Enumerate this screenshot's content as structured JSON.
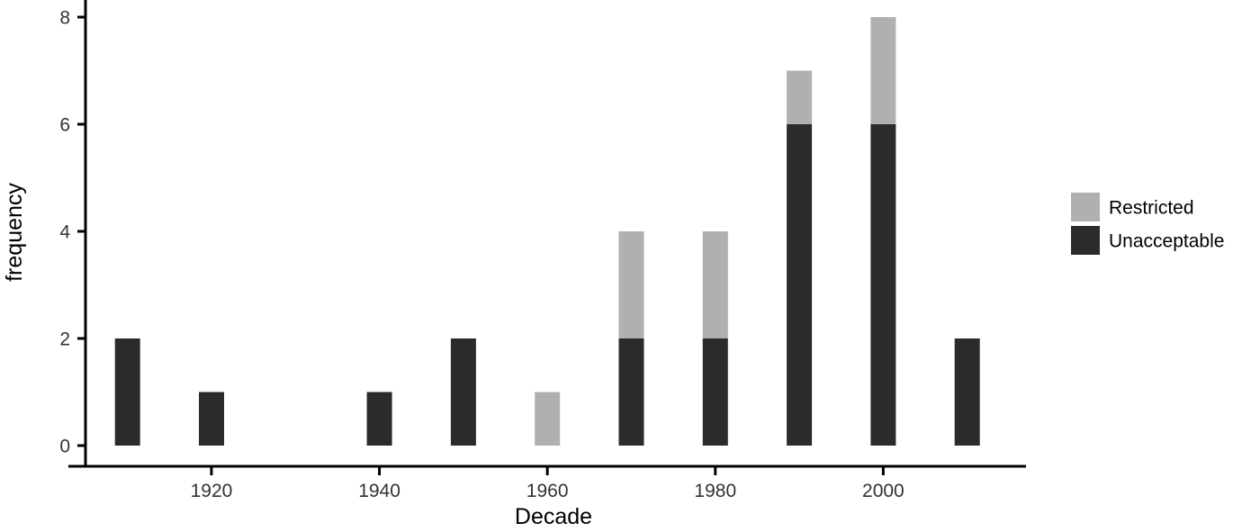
{
  "chart_data": {
    "type": "bar",
    "stacked": true,
    "title": "",
    "xlabel": "Decade",
    "ylabel": "frequency",
    "categories": [
      1910,
      1920,
      1930,
      1940,
      1950,
      1960,
      1970,
      1980,
      1990,
      2000,
      2010
    ],
    "series": [
      {
        "name": "Unacceptable",
        "color": "#2b2b2b",
        "values": [
          2,
          1,
          0,
          1,
          2,
          0,
          2,
          2,
          6,
          6,
          2
        ]
      },
      {
        "name": "Restricted",
        "color": "#b0b0b0",
        "values": [
          0,
          0,
          0,
          0,
          0,
          1,
          2,
          2,
          1,
          2,
          0
        ]
      }
    ],
    "totals": [
      2,
      1,
      0,
      1,
      2,
      1,
      4,
      4,
      7,
      8,
      2
    ],
    "x_domain": [
      1905,
      2017
    ],
    "ylim": [
      0,
      8
    ],
    "yticks": [
      0,
      2,
      4,
      6,
      8
    ],
    "xticks": [
      1920,
      1940,
      1960,
      1980,
      2000
    ],
    "grid": false,
    "legend_position": "right",
    "legend_entries": [
      {
        "label": "Restricted",
        "color": "#b0b0b0"
      },
      {
        "label": "Unacceptable",
        "color": "#2b2b2b"
      }
    ]
  },
  "style_colors": {
    "axis_line": "#000000",
    "tick_text": "#333333",
    "axis_title_text": "#000000",
    "background": "#ffffff"
  }
}
